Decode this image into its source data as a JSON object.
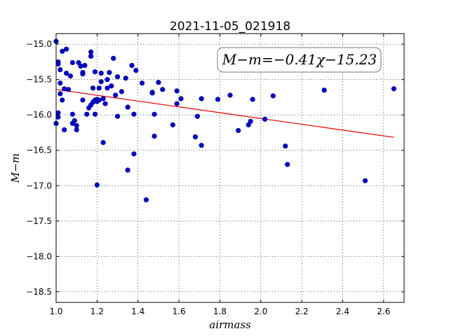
{
  "chart_data": {
    "type": "scatter",
    "title": "2021-11-05_021918",
    "xlabel": "airmass",
    "ylabel": "M−m",
    "xlim": [
      1.0,
      2.7
    ],
    "ylim": [
      -18.65,
      -14.85
    ],
    "x_ticks": [
      "1.0",
      "1.2",
      "1.4",
      "1.6",
      "1.8",
      "2.0",
      "2.2",
      "2.4",
      "2.6"
    ],
    "y_ticks": [
      "−15.0",
      "−15.5",
      "−16.0",
      "−16.5",
      "−17.0",
      "−17.5",
      "−18.0",
      "−18.5"
    ],
    "grid": true,
    "annotation": "M−m=−0.41χ−15.23",
    "point_color": "#0000cc",
    "fit_color": "#dd0000",
    "fit_line": {
      "slope": -0.41,
      "intercept": -15.23,
      "x_range": [
        1.0,
        2.65
      ]
    },
    "points": [
      [
        1.0,
        -14.96
      ],
      [
        1.01,
        -15.25
      ],
      [
        1.01,
        -15.28
      ],
      [
        1.02,
        -15.36
      ],
      [
        1.02,
        -15.55
      ],
      [
        1.03,
        -15.1
      ],
      [
        1.05,
        -15.07
      ],
      [
        1.01,
        -15.97
      ],
      [
        1.0,
        -16.12
      ],
      [
        1.01,
        -16.03
      ],
      [
        1.02,
        -15.7
      ],
      [
        1.03,
        -15.79
      ],
      [
        1.04,
        -15.63
      ],
      [
        1.05,
        -15.41
      ],
      [
        1.06,
        -15.64
      ],
      [
        1.04,
        -16.21
      ],
      [
        1.07,
        -15.45
      ],
      [
        1.08,
        -15.26
      ],
      [
        1.08,
        -15.99
      ],
      [
        1.08,
        -16.12
      ],
      [
        1.09,
        -16.08
      ],
      [
        1.1,
        -16.15
      ],
      [
        1.1,
        -16.21
      ],
      [
        1.11,
        -15.26
      ],
      [
        1.12,
        -15.31
      ],
      [
        1.13,
        -15.4
      ],
      [
        1.13,
        -15.42
      ],
      [
        1.14,
        -15.3
      ],
      [
        1.13,
        -15.79
      ],
      [
        1.15,
        -15.99
      ],
      [
        1.16,
        -15.9
      ],
      [
        1.17,
        -15.86
      ],
      [
        1.17,
        -15.11
      ],
      [
        1.17,
        -15.17
      ],
      [
        1.18,
        -15.62
      ],
      [
        1.18,
        -15.82
      ],
      [
        1.19,
        -15.79
      ],
      [
        1.19,
        -15.39
      ],
      [
        1.2,
        -15.81
      ],
      [
        1.2,
        -15.78
      ],
      [
        1.21,
        -15.62
      ],
      [
        1.21,
        -15.79
      ],
      [
        1.22,
        -15.53
      ],
      [
        1.22,
        -15.41
      ],
      [
        1.23,
        -15.77
      ],
      [
        1.24,
        -15.84
      ],
      [
        1.25,
        -15.5
      ],
      [
        1.25,
        -15.62
      ],
      [
        1.26,
        -15.4
      ],
      [
        1.27,
        -15.59
      ],
      [
        1.28,
        -15.2
      ],
      [
        1.29,
        -15.72
      ],
      [
        1.3,
        -15.46
      ],
      [
        1.3,
        -16.02
      ],
      [
        1.32,
        -15.67
      ],
      [
        1.34,
        -15.48
      ],
      [
        1.35,
        -15.89
      ],
      [
        1.37,
        -15.3
      ],
      [
        1.38,
        -15.99
      ],
      [
        1.39,
        -15.37
      ],
      [
        1.19,
        -15.99
      ],
      [
        1.2,
        -16.99
      ],
      [
        1.23,
        -16.39
      ],
      [
        1.35,
        -16.78
      ],
      [
        1.38,
        -16.55
      ],
      [
        1.42,
        -15.55
      ],
      [
        1.44,
        -17.2
      ],
      [
        1.47,
        -15.68
      ],
      [
        1.47,
        -15.69
      ],
      [
        1.48,
        -15.99
      ],
      [
        1.48,
        -16.3
      ],
      [
        1.5,
        -15.54
      ],
      [
        1.52,
        -15.64
      ],
      [
        1.57,
        -16.14
      ],
      [
        1.59,
        -15.66
      ],
      [
        1.59,
        -15.84
      ],
      [
        1.61,
        -15.77
      ],
      [
        1.68,
        -16.31
      ],
      [
        1.69,
        -16.02
      ],
      [
        1.71,
        -16.43
      ],
      [
        1.71,
        -15.77
      ],
      [
        1.79,
        -15.78
      ],
      [
        1.85,
        -15.72
      ],
      [
        1.89,
        -16.22
      ],
      [
        1.94,
        -16.14
      ],
      [
        1.95,
        -16.09
      ],
      [
        1.96,
        -15.78
      ],
      [
        2.02,
        -16.06
      ],
      [
        2.06,
        -15.73
      ],
      [
        2.12,
        -16.44
      ],
      [
        2.13,
        -16.7
      ],
      [
        2.31,
        -15.65
      ],
      [
        2.51,
        -16.93
      ],
      [
        2.65,
        -15.63
      ]
    ]
  }
}
